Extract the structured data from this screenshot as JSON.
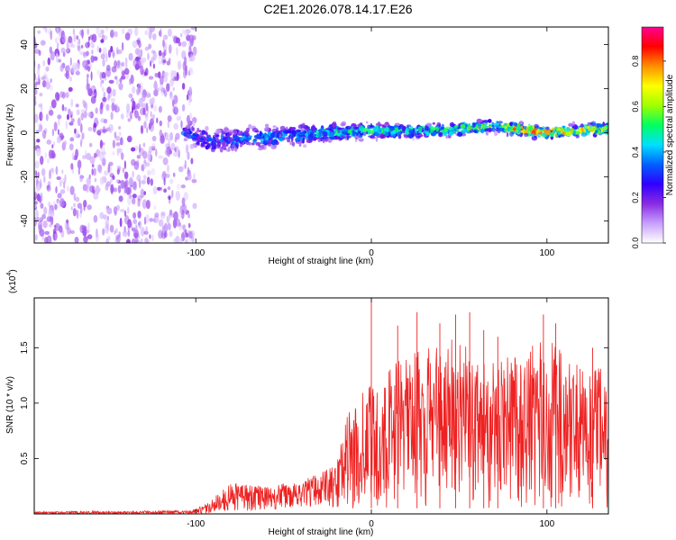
{
  "figure": {
    "title": "C2E1.2026.078.14.17.E26"
  },
  "chart_data": [
    {
      "type": "heatmap",
      "name": "spectrogram",
      "xlabel": "Height of straight line (km)",
      "ylabel": "Frequency (Hz)",
      "xlim": [
        -192,
        135
      ],
      "ylim": [
        -50,
        48
      ],
      "x_ticks": [
        -100,
        0,
        100
      ],
      "x_tick_labels": [
        "-100",
        "0",
        "100"
      ],
      "y_ticks": [
        -40,
        -20,
        0,
        20,
        40
      ],
      "y_tick_labels": [
        "-40",
        "-20",
        "0",
        "20",
        "40"
      ],
      "colorbar": {
        "label": "Normalized spectral amplitude",
        "range": [
          0.0,
          0.95
        ],
        "ticks": [
          0.0,
          0.2,
          0.4,
          0.6,
          0.8
        ],
        "tick_labels": [
          "0.0",
          "0.2",
          "0.4",
          "0.6",
          "0.8"
        ],
        "colormap": [
          "#ffffff",
          "#c8a0ff",
          "#8a2be2",
          "#3000ff",
          "#0060ff",
          "#00e0ff",
          "#00ff60",
          "#a0ff00",
          "#ffff00",
          "#ff9000",
          "#ff0000",
          "#ff0090"
        ]
      },
      "noise_region": {
        "x_range": [
          -192,
          -100
        ],
        "freq_range": [
          -50,
          48
        ],
        "typical_amplitude": 0.12
      },
      "signal_band": {
        "x_range": [
          -107,
          135
        ],
        "center_freq_hz": [
          {
            "x": -107,
            "f": 0
          },
          {
            "x": -90,
            "f": -4
          },
          {
            "x": -60,
            "f": -2
          },
          {
            "x": -30,
            "f": 0
          },
          {
            "x": 0,
            "f": 1
          },
          {
            "x": 40,
            "f": 1
          },
          {
            "x": 70,
            "f": 3
          },
          {
            "x": 100,
            "f": 0
          },
          {
            "x": 135,
            "f": 2
          }
        ],
        "half_width_hz": [
          {
            "x": -107,
            "w": 6
          },
          {
            "x": -90,
            "w": 8
          },
          {
            "x": -60,
            "w": 7
          },
          {
            "x": -30,
            "w": 6
          },
          {
            "x": 0,
            "w": 5
          },
          {
            "x": 60,
            "w": 4
          },
          {
            "x": 100,
            "w": 4
          },
          {
            "x": 135,
            "w": 4
          }
        ],
        "peak_amplitude": [
          {
            "x": -107,
            "a": 0.35
          },
          {
            "x": -60,
            "a": 0.45
          },
          {
            "x": 0,
            "a": 0.55
          },
          {
            "x": 40,
            "a": 0.6
          },
          {
            "x": 70,
            "a": 0.7
          },
          {
            "x": 80,
            "a": 0.92
          },
          {
            "x": 100,
            "a": 0.88
          },
          {
            "x": 135,
            "a": 0.8
          }
        ]
      }
    },
    {
      "type": "line",
      "name": "snr",
      "xlabel": "Height of straight line (km)",
      "ylabel": "SNR (10 * v/v)",
      "y_scale_label": "(x10",
      "y_scale_exponent": "4",
      "xlim": [
        -192,
        135
      ],
      "ylim": [
        0.0,
        1.95
      ],
      "x_ticks": [
        -100,
        0,
        100
      ],
      "x_tick_labels": [
        "-100",
        "0",
        "100"
      ],
      "y_ticks": [
        0.5,
        1.0,
        1.5
      ],
      "y_tick_labels": [
        "0.5",
        "1.0",
        "1.5"
      ],
      "color": "#ee2222",
      "envelope": [
        {
          "x": -192,
          "lo": 0.0,
          "hi": 0.02
        },
        {
          "x": -103,
          "lo": 0.0,
          "hi": 0.03
        },
        {
          "x": -95,
          "lo": 0.0,
          "hi": 0.08
        },
        {
          "x": -80,
          "lo": 0.02,
          "hi": 0.28
        },
        {
          "x": -60,
          "lo": 0.03,
          "hi": 0.25
        },
        {
          "x": -40,
          "lo": 0.05,
          "hi": 0.3
        },
        {
          "x": -20,
          "lo": 0.05,
          "hi": 0.45
        },
        {
          "x": -14,
          "lo": 0.05,
          "hi": 0.9
        },
        {
          "x": 0,
          "lo": 0.05,
          "hi": 1.2
        },
        {
          "x": 20,
          "lo": 0.05,
          "hi": 1.45
        },
        {
          "x": 50,
          "lo": 0.05,
          "hi": 1.6
        },
        {
          "x": 80,
          "lo": 0.05,
          "hi": 1.4
        },
        {
          "x": 100,
          "lo": 0.05,
          "hi": 1.6
        },
        {
          "x": 120,
          "lo": 0.05,
          "hi": 1.35
        },
        {
          "x": 135,
          "lo": 0.05,
          "hi": 1.3
        }
      ],
      "peaks": [
        {
          "x": 0,
          "y": 1.95
        },
        {
          "x": 15,
          "y": 1.7
        },
        {
          "x": 26,
          "y": 1.82
        },
        {
          "x": 39,
          "y": 1.72
        },
        {
          "x": 48,
          "y": 1.8
        },
        {
          "x": 56,
          "y": 1.82
        },
        {
          "x": 64,
          "y": 1.66
        },
        {
          "x": 72,
          "y": 1.6
        },
        {
          "x": 98,
          "y": 1.8
        },
        {
          "x": 105,
          "y": 1.72
        },
        {
          "x": 126,
          "y": 1.5
        }
      ]
    }
  ]
}
